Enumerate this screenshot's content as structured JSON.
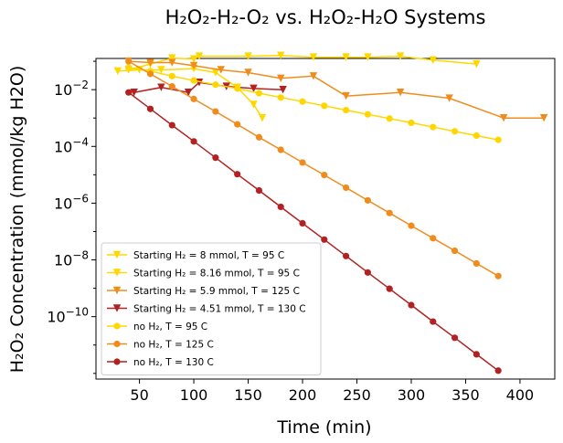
{
  "chart_data": {
    "type": "line",
    "title": "H₂O₂-H₂-O₂ vs. H₂O₂-H₂O Systems",
    "xlabel": "Time (min)",
    "ylabel": "H₂O₂ Concentration (mmol/kg H2O)",
    "xlim": [
      10,
      432
    ],
    "ylog": true,
    "ylim_exp": [
      -12.2,
      -0.9
    ],
    "xticks": [
      50,
      100,
      150,
      200,
      250,
      300,
      350,
      400
    ],
    "yticks_exp": [
      -10,
      -8,
      -6,
      -4,
      -2
    ],
    "legend": "lower-left",
    "series": [
      {
        "name": "Starting H₂ = 8 mmol, T = 95 C",
        "marker": "triangle-down",
        "color": "#ffd700",
        "x": [
          40,
          60,
          80,
          100,
          105,
          150,
          180,
          210,
          240,
          260,
          290,
          320,
          360
        ],
        "y": [
          0.05,
          0.08,
          0.13,
          0.12,
          0.15,
          0.15,
          0.16,
          0.14,
          0.14,
          0.14,
          0.15,
          0.11,
          0.08
        ]
      },
      {
        "name": "Starting H₂ = 8.16 mmol, T = 95 C",
        "marker": "triangle-down",
        "color": "#ffd800",
        "x": [
          30,
          50,
          70,
          100,
          120,
          140,
          155,
          163
        ],
        "y": [
          0.045,
          0.05,
          0.05,
          0.055,
          0.04,
          0.012,
          0.003,
          0.001
        ]
      },
      {
        "name": "Starting H₂ = 5.9 mmol, T = 125 C",
        "marker": "triangle-down",
        "color": "#f08c1e",
        "x": [
          40,
          60,
          80,
          100,
          125,
          150,
          180,
          210,
          240,
          290,
          335,
          385,
          422
        ],
        "y": [
          0.1,
          0.09,
          0.09,
          0.07,
          0.05,
          0.04,
          0.025,
          0.03,
          0.006,
          0.008,
          0.005,
          0.001,
          0.001
        ]
      },
      {
        "name": "Starting H₂ = 4.51 mmol, T = 130 C",
        "marker": "triangle-down",
        "color": "#b22222",
        "x": [
          45,
          70,
          95,
          105,
          130,
          155,
          182
        ],
        "y": [
          0.008,
          0.012,
          0.008,
          0.018,
          0.013,
          0.011,
          0.01
        ]
      },
      {
        "name": "no H₂, T = 95 C",
        "marker": "circle",
        "color": "#ffd700",
        "x": [
          40,
          60,
          80,
          100,
          120,
          140,
          160,
          180,
          200,
          220,
          240,
          260,
          280,
          300,
          320,
          340,
          360,
          380
        ],
        "y": [
          0.06,
          0.045,
          0.03,
          0.021,
          0.015,
          0.011,
          0.0075,
          0.0053,
          0.0038,
          0.0027,
          0.0019,
          0.00135,
          0.00096,
          0.00068,
          0.00048,
          0.00034,
          0.00024,
          0.00017
        ]
      },
      {
        "name": "no H₂, T = 125 C",
        "marker": "circle",
        "color": "#f08c1e",
        "x": [
          40,
          60,
          80,
          100,
          120,
          140,
          160,
          180,
          200,
          220,
          240,
          260,
          280,
          300,
          320,
          340,
          360,
          380
        ],
        "y": [
          0.1,
          0.036,
          0.013,
          0.0047,
          0.0017,
          0.0006,
          0.00021,
          7.6e-05,
          2.7e-05,
          9.8e-06,
          3.5e-06,
          1.25e-06,
          4.5e-07,
          1.6e-07,
          5.8e-08,
          2.1e-08,
          7.5e-09,
          2.7e-09
        ]
      },
      {
        "name": "no H₂, T = 130 C",
        "marker": "circle",
        "color": "#b22222",
        "x": [
          40,
          60,
          80,
          100,
          120,
          140,
          160,
          180,
          200,
          220,
          240,
          260,
          280,
          300,
          320,
          340,
          360,
          380
        ],
        "y": [
          0.008,
          0.0021,
          0.00056,
          0.00015,
          4e-05,
          1.05e-05,
          2.8e-06,
          7.4e-07,
          1.95e-07,
          5.2e-08,
          1.37e-08,
          3.6e-09,
          9.6e-10,
          2.55e-10,
          6.7e-11,
          1.8e-11,
          4.7e-12,
          1.25e-12
        ]
      }
    ]
  }
}
